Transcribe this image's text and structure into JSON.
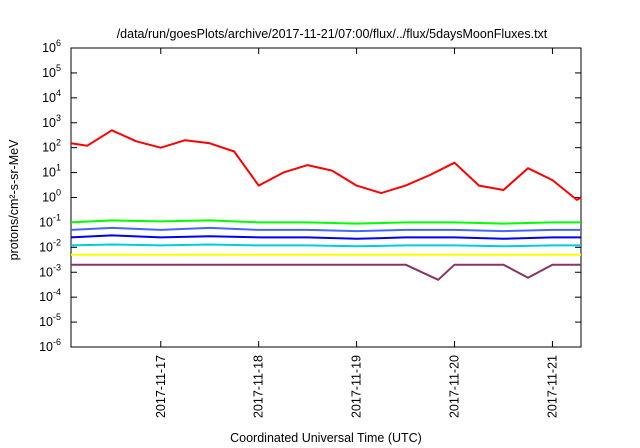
{
  "chart_data": {
    "type": "line",
    "title": "/data/run/goesPlots/archive/2017-11-21/07:00/flux/../flux/5daysMoonFluxes.txt",
    "xlabel": "Coordinated Universal Time (UTC)",
    "ylabel": "protons/cm²-s-sr-MeV",
    "yscale": "log",
    "ylim": [
      1e-06,
      1000000.0
    ],
    "ytick_base": "10",
    "ytick_exponents": [
      "-6",
      "-5",
      "-4",
      "-3",
      "-2",
      "-1",
      "0",
      "1",
      "2",
      "3",
      "4",
      "5",
      "6"
    ],
    "xlim": [
      "2017-11-16T02:00",
      "2017-11-21T07:00"
    ],
    "xticks": [
      {
        "label": "2017-11-17",
        "t": "2017-11-17T00:00"
      },
      {
        "label": "2017-11-18",
        "t": "2017-11-18T00:00"
      },
      {
        "label": "2017-11-19",
        "t": "2017-11-19T00:00"
      },
      {
        "label": "2017-11-20",
        "t": "2017-11-20T00:00"
      },
      {
        "label": "2017-11-21",
        "t": "2017-11-21T00:00"
      }
    ],
    "grid": false,
    "legend": "none",
    "series": [
      {
        "color": "#ff0000",
        "x": [
          "2017-11-16T02:00",
          "2017-11-16T06:00",
          "2017-11-16T12:00",
          "2017-11-16T18:00",
          "2017-11-17T00:00",
          "2017-11-17T06:00",
          "2017-11-17T12:00",
          "2017-11-17T18:00",
          "2017-11-18T00:00",
          "2017-11-18T06:00",
          "2017-11-18T12:00",
          "2017-11-18T18:00",
          "2017-11-19T00:00",
          "2017-11-19T06:00",
          "2017-11-19T12:00",
          "2017-11-19T18:00",
          "2017-11-20T00:00",
          "2017-11-20T06:00",
          "2017-11-20T12:00",
          "2017-11-20T18:00",
          "2017-11-21T00:00",
          "2017-11-21T06:00",
          "2017-11-21T07:00"
        ],
        "values": [
          150,
          120,
          500,
          180,
          100,
          200,
          150,
          70,
          3,
          10,
          20,
          12,
          3,
          1.5,
          3,
          8,
          25,
          3,
          2,
          15,
          5,
          0.8,
          1
        ]
      },
      {
        "color": "#00ff00",
        "x": [
          "2017-11-16T02:00",
          "2017-11-16T12:00",
          "2017-11-17T00:00",
          "2017-11-17T12:00",
          "2017-11-18T00:00",
          "2017-11-18T12:00",
          "2017-11-19T00:00",
          "2017-11-19T12:00",
          "2017-11-20T00:00",
          "2017-11-20T12:00",
          "2017-11-21T00:00",
          "2017-11-21T07:00"
        ],
        "values": [
          0.1,
          0.12,
          0.11,
          0.12,
          0.1,
          0.1,
          0.09,
          0.1,
          0.1,
          0.09,
          0.1,
          0.1
        ]
      },
      {
        "color": "#4466ff",
        "x": [
          "2017-11-16T02:00",
          "2017-11-16T12:00",
          "2017-11-17T00:00",
          "2017-11-17T12:00",
          "2017-11-18T00:00",
          "2017-11-18T12:00",
          "2017-11-19T00:00",
          "2017-11-19T12:00",
          "2017-11-20T00:00",
          "2017-11-20T12:00",
          "2017-11-21T00:00",
          "2017-11-21T07:00"
        ],
        "values": [
          0.05,
          0.06,
          0.05,
          0.06,
          0.05,
          0.05,
          0.045,
          0.05,
          0.05,
          0.045,
          0.05,
          0.05
        ]
      },
      {
        "color": "#0000ee",
        "x": [
          "2017-11-16T02:00",
          "2017-11-16T12:00",
          "2017-11-17T00:00",
          "2017-11-17T12:00",
          "2017-11-18T00:00",
          "2017-11-18T12:00",
          "2017-11-19T00:00",
          "2017-11-19T12:00",
          "2017-11-20T00:00",
          "2017-11-20T12:00",
          "2017-11-21T00:00",
          "2017-11-21T07:00"
        ],
        "values": [
          0.025,
          0.03,
          0.025,
          0.028,
          0.025,
          0.025,
          0.022,
          0.025,
          0.025,
          0.022,
          0.025,
          0.025
        ]
      },
      {
        "color": "#00ccdd",
        "x": [
          "2017-11-16T02:00",
          "2017-11-16T12:00",
          "2017-11-17T00:00",
          "2017-11-17T12:00",
          "2017-11-18T00:00",
          "2017-11-18T12:00",
          "2017-11-19T00:00",
          "2017-11-19T12:00",
          "2017-11-20T00:00",
          "2017-11-20T12:00",
          "2017-11-21T00:00",
          "2017-11-21T07:00"
        ],
        "values": [
          0.012,
          0.013,
          0.012,
          0.013,
          0.012,
          0.012,
          0.011,
          0.012,
          0.012,
          0.011,
          0.012,
          0.012
        ]
      },
      {
        "color": "#ffff00",
        "x": [
          "2017-11-16T02:00",
          "2017-11-16T12:00",
          "2017-11-17T00:00",
          "2017-11-17T12:00",
          "2017-11-18T00:00",
          "2017-11-18T12:00",
          "2017-11-19T00:00",
          "2017-11-19T12:00",
          "2017-11-20T00:00",
          "2017-11-20T12:00",
          "2017-11-21T00:00",
          "2017-11-21T07:00"
        ],
        "values": [
          0.005,
          0.005,
          0.005,
          0.005,
          0.005,
          0.005,
          0.005,
          0.005,
          0.005,
          0.005,
          0.005,
          0.005
        ]
      },
      {
        "color": "#883366",
        "x": [
          "2017-11-16T02:00",
          "2017-11-16T12:00",
          "2017-11-17T00:00",
          "2017-11-17T12:00",
          "2017-11-18T00:00",
          "2017-11-18T12:00",
          "2017-11-19T00:00",
          "2017-11-19T12:00",
          "2017-11-19T20:00",
          "2017-11-20T00:00",
          "2017-11-20T12:00",
          "2017-11-20T18:00",
          "2017-11-21T00:00",
          "2017-11-21T07:00"
        ],
        "values": [
          0.002,
          0.002,
          0.002,
          0.002,
          0.002,
          0.002,
          0.002,
          0.002,
          0.0005,
          0.002,
          0.002,
          0.0006,
          0.002,
          0.002
        ]
      }
    ]
  }
}
